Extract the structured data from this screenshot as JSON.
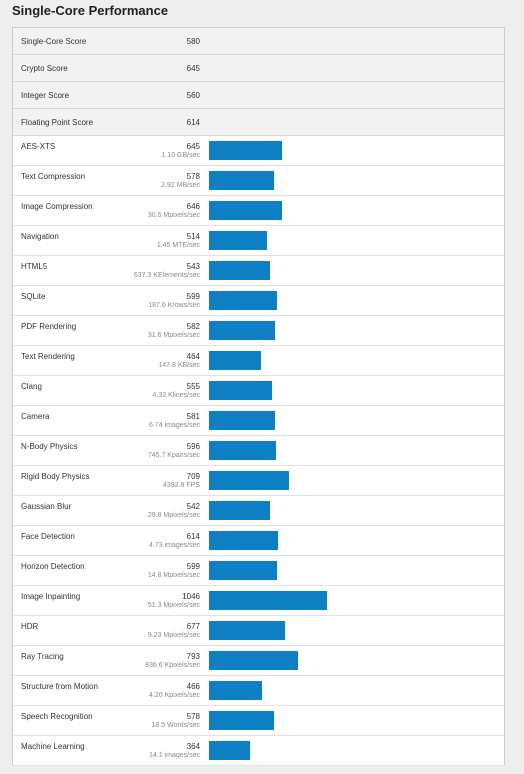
{
  "page": {
    "title": "Single-Core Performance"
  },
  "colors": {
    "bar": "#0f7fc4",
    "summary_bg": "#f2f2f2"
  },
  "bar_scale_max_score": 1046,
  "summary": [
    {
      "label": "Single-Core Score",
      "value": "580"
    },
    {
      "label": "Crypto Score",
      "value": "645"
    },
    {
      "label": "Integer Score",
      "value": "560"
    },
    {
      "label": "Floating Point Score",
      "value": "614"
    }
  ],
  "benchmarks": [
    {
      "label": "AES-XTS",
      "score": "645",
      "rate": "1.10 GB/sec",
      "bar_value": 645
    },
    {
      "label": "Text Compression",
      "score": "578",
      "rate": "2.92 MB/sec",
      "bar_value": 578
    },
    {
      "label": "Image Compression",
      "score": "646",
      "rate": "30.5 Mpixels/sec",
      "bar_value": 646
    },
    {
      "label": "Navigation",
      "score": "514",
      "rate": "1.45 MTE/sec",
      "bar_value": 514
    },
    {
      "label": "HTML5",
      "score": "543",
      "rate": "637.3 KElements/sec",
      "bar_value": 543
    },
    {
      "label": "SQLite",
      "score": "599",
      "rate": "187.6 Krows/sec",
      "bar_value": 599
    },
    {
      "label": "PDF Rendering",
      "score": "582",
      "rate": "31.6 Mpixels/sec",
      "bar_value": 582
    },
    {
      "label": "Text Rendering",
      "score": "464",
      "rate": "147.8 KB/sec",
      "bar_value": 464
    },
    {
      "label": "Clang",
      "score": "555",
      "rate": "4.32 Klines/sec",
      "bar_value": 555
    },
    {
      "label": "Camera",
      "score": "581",
      "rate": "6.74 images/sec",
      "bar_value": 581
    },
    {
      "label": "N-Body Physics",
      "score": "596",
      "rate": "745.7 Kpairs/sec",
      "bar_value": 596
    },
    {
      "label": "Rigid Body Physics",
      "score": "709",
      "rate": "4392.8 FPS",
      "bar_value": 709
    },
    {
      "label": "Gaussian Blur",
      "score": "542",
      "rate": "29.8 Mpixels/sec",
      "bar_value": 542
    },
    {
      "label": "Face Detection",
      "score": "614",
      "rate": "4.73 images/sec",
      "bar_value": 614
    },
    {
      "label": "Horizon Detection",
      "score": "599",
      "rate": "14.8 Mpixels/sec",
      "bar_value": 599
    },
    {
      "label": "Image Inpainting",
      "score": "1046",
      "rate": "51.3 Mpixels/sec",
      "bar_value": 1046
    },
    {
      "label": "HDR",
      "score": "677",
      "rate": "9.23 Mpixels/sec",
      "bar_value": 677
    },
    {
      "label": "Ray Tracing",
      "score": "793",
      "rate": "836.6 Kpixels/sec",
      "bar_value": 793
    },
    {
      "label": "Structure from Motion",
      "score": "466",
      "rate": "4.20 Kpixels/sec",
      "bar_value": 466
    },
    {
      "label": "Speech Recognition",
      "score": "578",
      "rate": "18.5 Words/sec",
      "bar_value": 578
    },
    {
      "label": "Machine Learning",
      "score": "364",
      "rate": "14.1 images/sec",
      "bar_value": 364
    }
  ]
}
